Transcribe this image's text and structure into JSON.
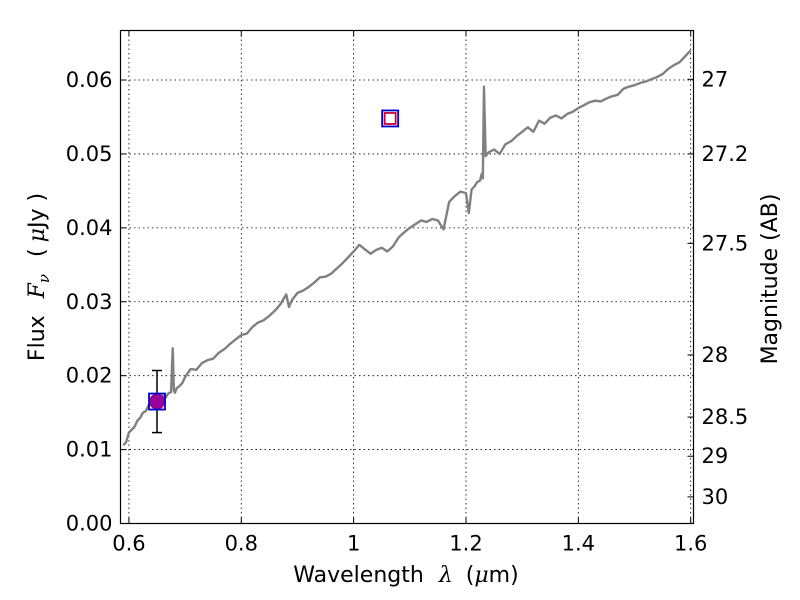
{
  "chart_data": {
    "type": "line",
    "xlabel": {
      "prefix": "Wavelength",
      "symbol": "λ",
      "unit_open": "(",
      "unit_mu": "μ",
      "unit_rest": "m)"
    },
    "ylabel": {
      "prefix": "Flux",
      "symbol": "F",
      "subscript": "ν",
      "unit_open": "(",
      "unit_mu": "μ",
      "unit_rest": "Jy )"
    },
    "y2label": "Magnitude (AB)",
    "xlim": [
      0.585,
      1.605
    ],
    "ylim": [
      0.0,
      0.0667
    ],
    "grid": true,
    "x_ticks": [
      {
        "value": 0.6,
        "label": "0.6"
      },
      {
        "value": 0.8,
        "label": "0.8"
      },
      {
        "value": 1.0,
        "label": "1"
      },
      {
        "value": 1.2,
        "label": "1.2"
      },
      {
        "value": 1.4,
        "label": "1.4"
      },
      {
        "value": 1.6,
        "label": "1.6"
      }
    ],
    "y_ticks": [
      {
        "value": 0.0,
        "label": "0.00"
      },
      {
        "value": 0.01,
        "label": "0.01"
      },
      {
        "value": 0.02,
        "label": "0.02"
      },
      {
        "value": 0.03,
        "label": "0.03"
      },
      {
        "value": 0.04,
        "label": "0.04"
      },
      {
        "value": 0.05,
        "label": "0.05"
      },
      {
        "value": 0.06,
        "label": "0.06"
      }
    ],
    "y2_ticks": [
      {
        "flux": 0.0601,
        "label": "27"
      },
      {
        "flux": 0.05,
        "label": "27.2"
      },
      {
        "flux": 0.0379,
        "label": "27.5"
      },
      {
        "flux": 0.0228,
        "label": "28"
      },
      {
        "flux": 0.0144,
        "label": "28.5"
      },
      {
        "flux": 0.0091,
        "label": "29"
      },
      {
        "flux": 0.0036,
        "label": "30"
      }
    ],
    "series": [
      {
        "color": "#808080",
        "x": [
          0.59,
          0.595,
          0.6,
          0.605,
          0.61,
          0.615,
          0.62,
          0.625,
          0.63,
          0.635,
          0.64,
          0.645,
          0.65,
          0.655,
          0.66,
          0.665,
          0.67,
          0.675,
          0.678,
          0.68,
          0.682,
          0.685,
          0.69,
          0.695,
          0.7,
          0.705,
          0.71,
          0.72,
          0.73,
          0.74,
          0.75,
          0.76,
          0.77,
          0.78,
          0.79,
          0.8,
          0.81,
          0.82,
          0.83,
          0.84,
          0.85,
          0.86,
          0.87,
          0.88,
          0.885,
          0.89,
          0.9,
          0.91,
          0.92,
          0.93,
          0.94,
          0.95,
          0.96,
          0.97,
          0.98,
          0.99,
          1.0,
          1.01,
          1.02,
          1.03,
          1.04,
          1.05,
          1.06,
          1.07,
          1.08,
          1.09,
          1.1,
          1.11,
          1.12,
          1.13,
          1.14,
          1.15,
          1.16,
          1.17,
          1.18,
          1.19,
          1.2,
          1.205,
          1.21,
          1.215,
          1.22,
          1.225,
          1.228,
          1.23,
          1.232,
          1.235,
          1.24,
          1.25,
          1.26,
          1.27,
          1.28,
          1.29,
          1.3,
          1.31,
          1.32,
          1.33,
          1.34,
          1.35,
          1.36,
          1.37,
          1.38,
          1.39,
          1.4,
          1.41,
          1.42,
          1.43,
          1.44,
          1.45,
          1.46,
          1.47,
          1.48,
          1.49,
          1.5,
          1.51,
          1.52,
          1.53,
          1.54,
          1.55,
          1.56,
          1.57,
          1.58,
          1.59,
          1.6
        ],
        "y": [
          0.0106,
          0.011,
          0.0123,
          0.0127,
          0.0131,
          0.0139,
          0.0143,
          0.015,
          0.0152,
          0.016,
          0.0162,
          0.0165,
          0.0168,
          0.017,
          0.0173,
          0.017,
          0.0176,
          0.0178,
          0.0237,
          0.018,
          0.0177,
          0.0183,
          0.0186,
          0.019,
          0.0198,
          0.0204,
          0.0209,
          0.0208,
          0.0217,
          0.0221,
          0.0223,
          0.0231,
          0.0236,
          0.0243,
          0.0249,
          0.0255,
          0.0257,
          0.0266,
          0.0272,
          0.0275,
          0.0281,
          0.0288,
          0.0297,
          0.031,
          0.0293,
          0.0302,
          0.0312,
          0.0315,
          0.032,
          0.0326,
          0.0333,
          0.0334,
          0.0338,
          0.0345,
          0.0352,
          0.036,
          0.0368,
          0.0377,
          0.0371,
          0.0365,
          0.037,
          0.0373,
          0.0368,
          0.0375,
          0.0387,
          0.0394,
          0.04,
          0.0405,
          0.041,
          0.0408,
          0.0412,
          0.041,
          0.0398,
          0.0435,
          0.0443,
          0.0449,
          0.0447,
          0.042,
          0.0452,
          0.0456,
          0.0462,
          0.0464,
          0.0473,
          0.0467,
          0.0591,
          0.0497,
          0.0502,
          0.0506,
          0.05,
          0.0513,
          0.0517,
          0.0524,
          0.053,
          0.0536,
          0.053,
          0.0545,
          0.0541,
          0.0549,
          0.0552,
          0.0548,
          0.0554,
          0.0557,
          0.0562,
          0.0566,
          0.057,
          0.0572,
          0.0571,
          0.0575,
          0.0578,
          0.058,
          0.0588,
          0.0591,
          0.0593,
          0.0596,
          0.0598,
          0.0601,
          0.0604,
          0.0608,
          0.0615,
          0.062,
          0.0624,
          0.0632,
          0.064
        ]
      }
    ],
    "markers": [
      {
        "type": "circle",
        "x": 0.65,
        "y": 0.0165,
        "color": "#990099"
      },
      {
        "type": "square",
        "x": 0.65,
        "y": 0.0165,
        "color": "#0000cc"
      },
      {
        "type": "square",
        "x": 1.065,
        "y": 0.0548,
        "color": "#0000cc"
      },
      {
        "type": "square",
        "x": 1.065,
        "y": 0.0548,
        "color": "#cc0033"
      }
    ],
    "errorbars": [
      {
        "x": 0.65,
        "y_low": 0.0123,
        "y_high": 0.0207,
        "color": "#000000"
      }
    ]
  }
}
